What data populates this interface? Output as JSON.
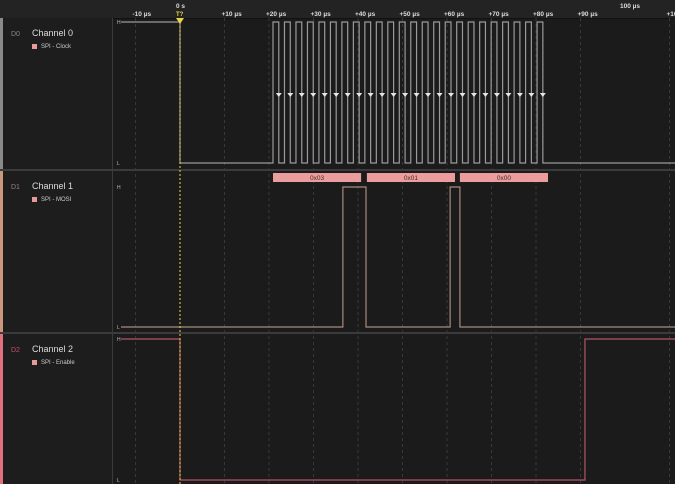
{
  "ruler": {
    "zero_label": "0 s",
    "trigger_label": "T?",
    "top_label": "100 µs",
    "ticks": [
      {
        "label": "-10 µs",
        "t": -10
      },
      {
        "label": "+10 µs",
        "t": 10
      },
      {
        "label": "+20 µs",
        "t": 20
      },
      {
        "label": "+30 µs",
        "t": 30
      },
      {
        "label": "+40 µs",
        "t": 40
      },
      {
        "label": "+50 µs",
        "t": 50
      },
      {
        "label": "+60 µs",
        "t": 60
      },
      {
        "label": "+70 µs",
        "t": 70
      },
      {
        "label": "+80 µs",
        "t": 80
      },
      {
        "label": "+90 µs",
        "t": 90
      },
      {
        "label": "+10",
        "t": 110
      }
    ]
  },
  "channels": [
    {
      "id": "D0",
      "name": "Channel 0",
      "analyzer": "SPI - Clock",
      "color": "#8a8a8a",
      "wave_color": "#9a9a9a",
      "high": "H",
      "low": "L"
    },
    {
      "id": "D1",
      "name": "Channel 1",
      "analyzer": "SPI - MOSI",
      "color": "#c9977c",
      "wave_color": "#a88a7c",
      "high": "H",
      "low": "L"
    },
    {
      "id": "D2",
      "name": "Channel 2",
      "analyzer": "SPI - Enable",
      "color": "#e0707e",
      "wave_color": "#b25563",
      "high": "H",
      "low": "L"
    }
  ],
  "signals": {
    "clock": {
      "initial": 1,
      "low_at": 0,
      "first_rise": 20.9,
      "period": 2.58,
      "high_time": 1.3,
      "pulses": 24
    },
    "mosi": {
      "initial": 0,
      "high_intervals": [
        [
          36.6,
          41.8
        ],
        [
          60.7,
          62.9
        ]
      ]
    },
    "enable": {
      "initial": 1,
      "low_interval": [
        0,
        91.0
      ]
    }
  },
  "decoded": [
    {
      "label": "0x03",
      "start": 20.9,
      "end": 40.7
    },
    {
      "label": "0x01",
      "start": 42.0,
      "end": 61.8
    },
    {
      "label": "0x00",
      "start": 62.9,
      "end": 82.7
    }
  ],
  "colors": {
    "trigger": "#e8d44a",
    "decoded_bg": "#eb9c9c",
    "decoded_text": "#4a2a2a"
  }
}
